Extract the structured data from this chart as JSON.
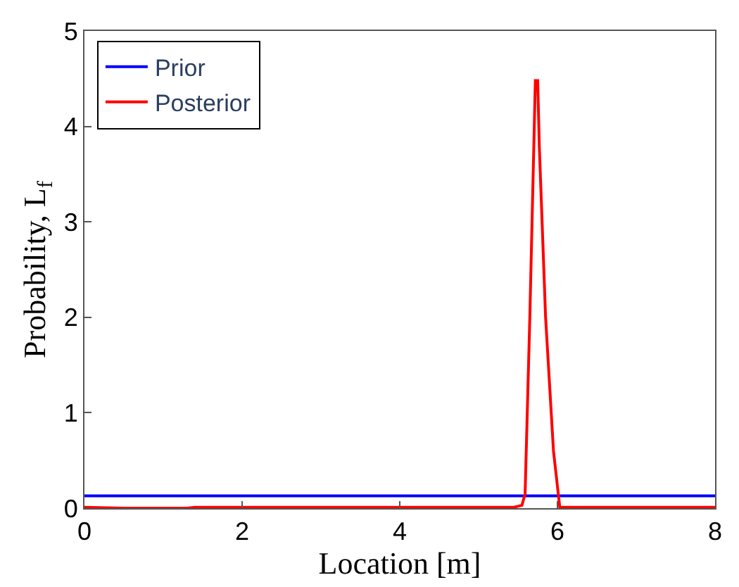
{
  "chart_data": {
    "type": "line",
    "xlabel": "Location [m]",
    "ylabel": "Probability, L$_{f}$",
    "xlim": [
      0,
      8
    ],
    "xticks": [
      0,
      2,
      4,
      6,
      8
    ],
    "ylim": [
      0,
      5
    ],
    "yticks": [
      0,
      1,
      2,
      3,
      4,
      5
    ],
    "legend": "top left",
    "marker": "none",
    "line_style": "solid",
    "series": [
      {
        "name": "Prior",
        "color": "#0000ff",
        "x": [
          0,
          8
        ],
        "values": [
          0.13,
          0.13
        ]
      },
      {
        "name": "Posterior",
        "color": "#ff0000",
        "x": [
          0,
          0.5,
          1.3,
          1.4,
          5.45,
          5.55,
          5.59,
          5.65,
          5.72,
          5.75,
          5.77,
          5.85,
          5.95,
          6.03,
          8
        ],
        "values": [
          0.01,
          0,
          0,
          0.01,
          0.01,
          0.03,
          0.15,
          2,
          4.48,
          4.48,
          3.8,
          2,
          0.6,
          0.01,
          0.01
        ]
      }
    ]
  }
}
